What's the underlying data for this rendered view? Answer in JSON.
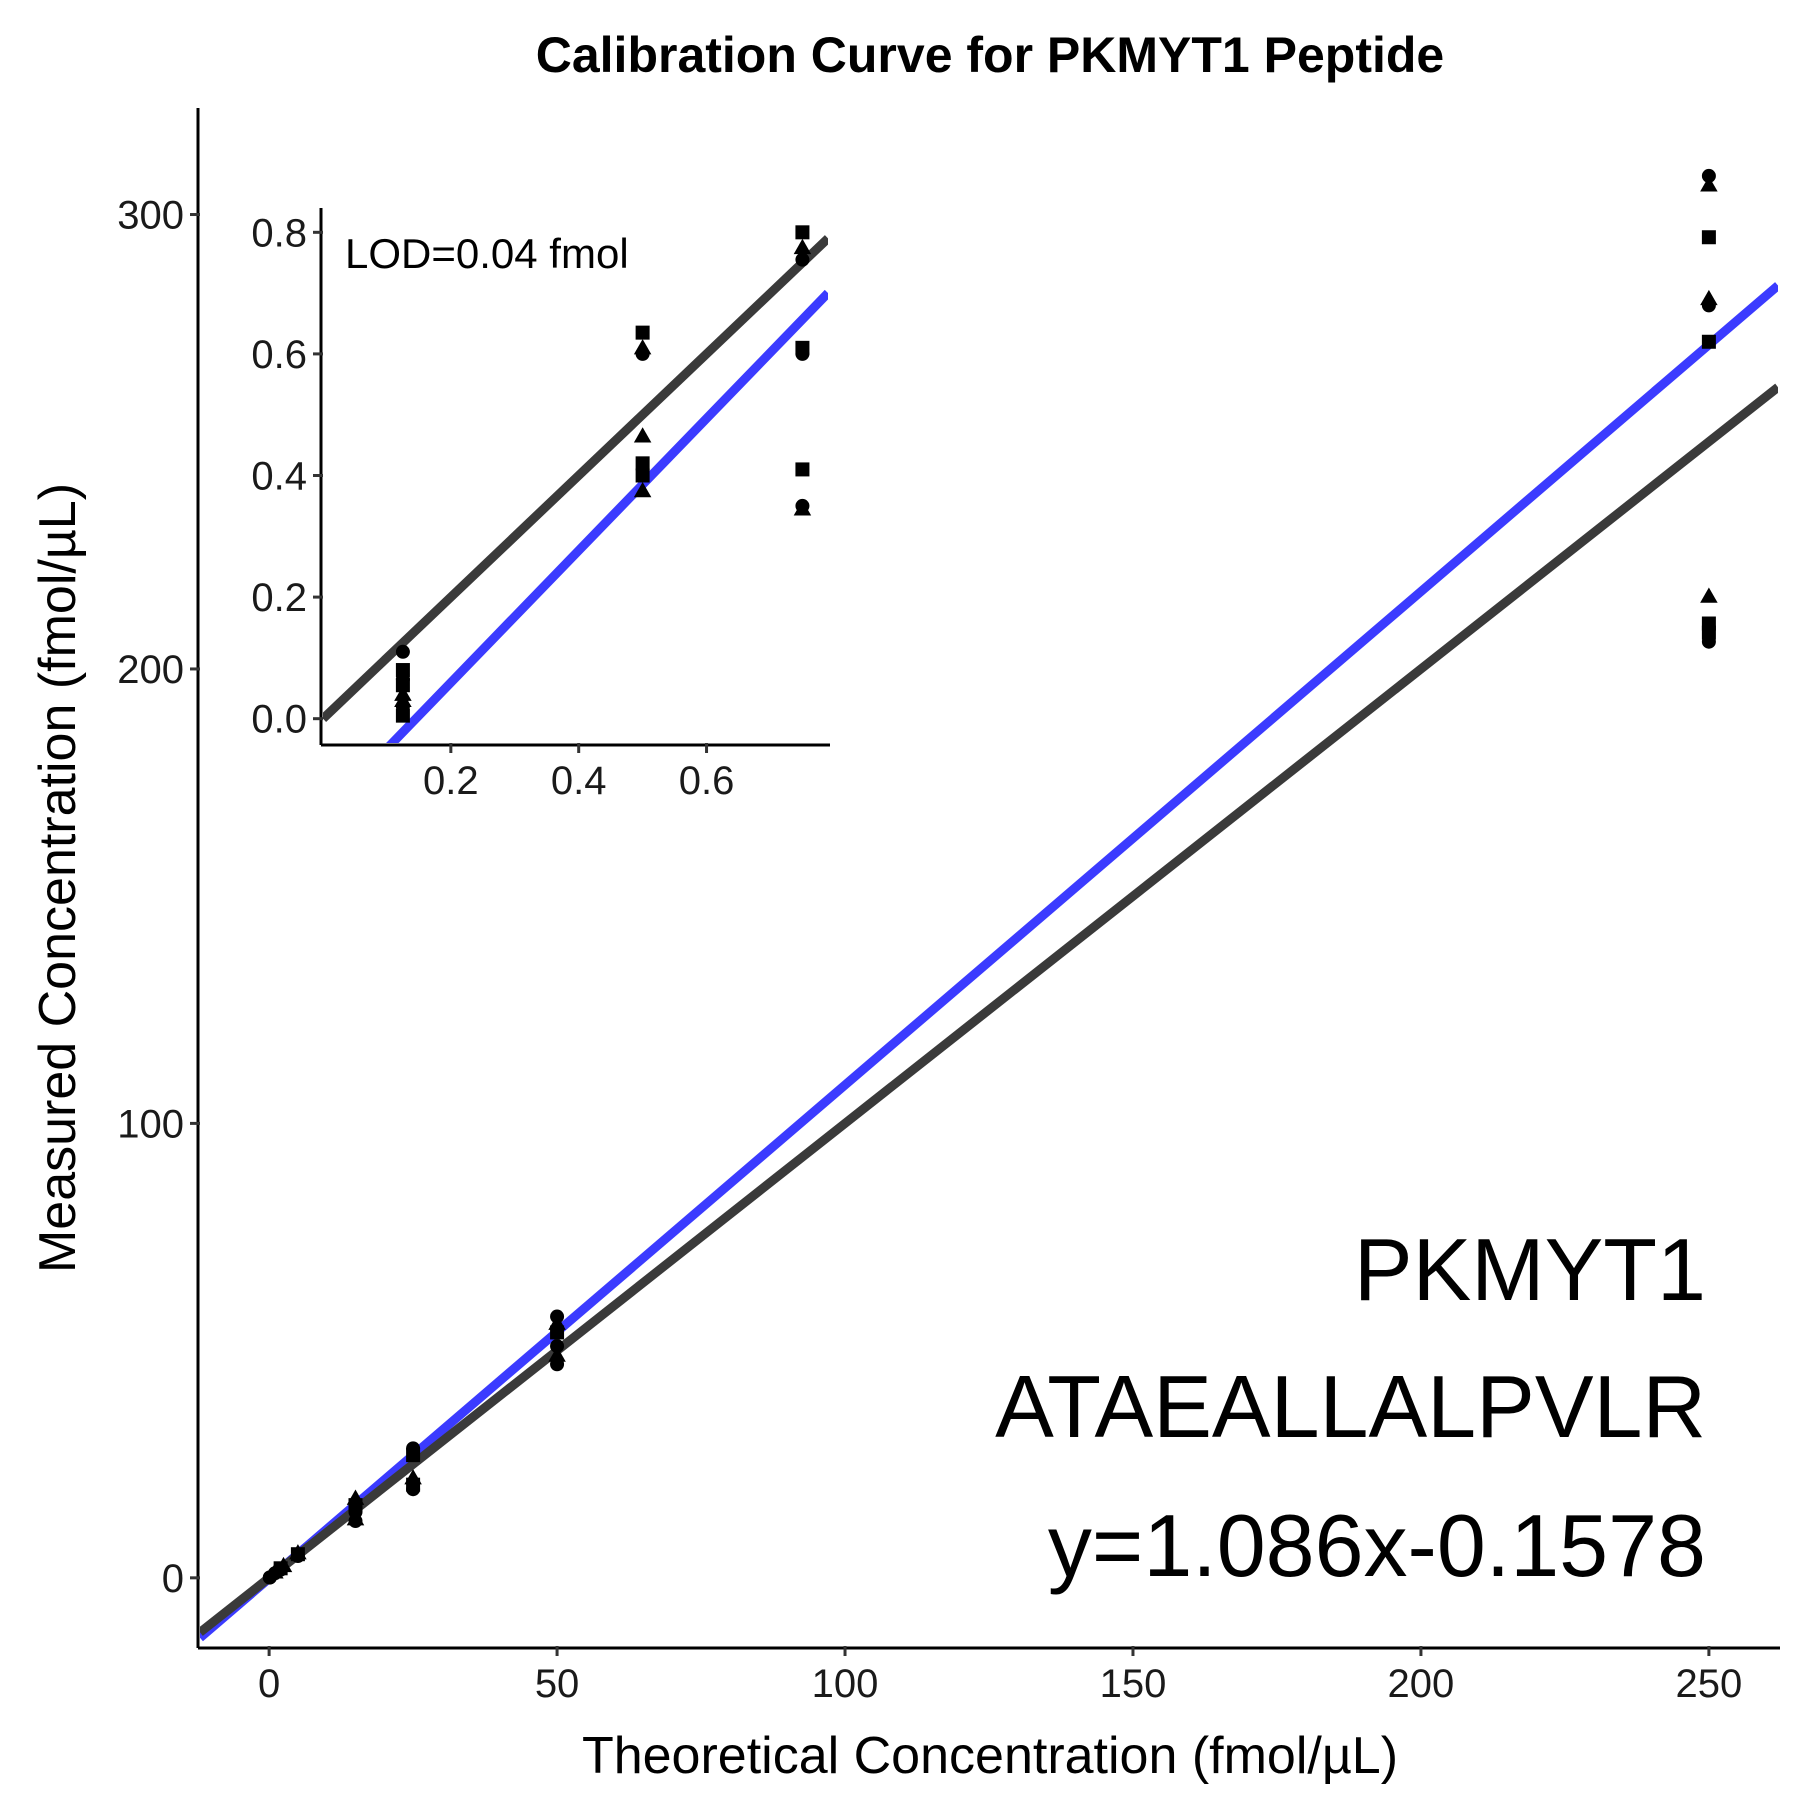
{
  "chart_data": {
    "type": "scatter",
    "title": "Calibration Curve for PKMYT1 Peptide",
    "xlabel": "Theoretical Concentration (fmol/µL)",
    "ylabel": "Measured Concentration (fmol/µL)",
    "xlim": [
      -12,
      262
    ],
    "ylim": [
      -15,
      323
    ],
    "xticks": [
      0,
      50,
      100,
      150,
      200,
      250
    ],
    "yticks": [
      0,
      100,
      200,
      300
    ],
    "grid": false,
    "annotation": {
      "protein": "PKMYT1",
      "peptide": "ATAEALLALPVLR",
      "equation": "y=1.086x-0.1578"
    },
    "lines": [
      {
        "name": "",
        "color": "#3b3bff",
        "slope": 1.086,
        "intercept": -0.1578
      },
      {
        "name": "",
        "color": "#3a3a3a",
        "slope": 1.0,
        "intercept": 0.0
      }
    ],
    "points": [
      {
        "x": 0.125,
        "y": 0.05,
        "shape": "circle"
      },
      {
        "x": 0.125,
        "y": 0.1,
        "shape": "circle"
      },
      {
        "x": 1,
        "y": 1.0,
        "shape": "circle"
      },
      {
        "x": 1,
        "y": 1.3,
        "shape": "triangle"
      },
      {
        "x": 2,
        "y": 2.1,
        "shape": "square"
      },
      {
        "x": 2,
        "y": 1.8,
        "shape": "circle"
      },
      {
        "x": 2.5,
        "y": 2.7,
        "shape": "triangle"
      },
      {
        "x": 5,
        "y": 5.2,
        "shape": "square"
      },
      {
        "x": 5,
        "y": 4.8,
        "shape": "circle"
      },
      {
        "x": 5,
        "y": 5.5,
        "shape": "triangle"
      },
      {
        "x": 15,
        "y": 17.5,
        "shape": "triangle"
      },
      {
        "x": 15,
        "y": 16.0,
        "shape": "square"
      },
      {
        "x": 15,
        "y": 14.5,
        "shape": "circle"
      },
      {
        "x": 15,
        "y": 13.0,
        "shape": "triangle"
      },
      {
        "x": 15,
        "y": 12.5,
        "shape": "circle"
      },
      {
        "x": 25,
        "y": 28.5,
        "shape": "circle"
      },
      {
        "x": 25,
        "y": 27.0,
        "shape": "square"
      },
      {
        "x": 25,
        "y": 22.0,
        "shape": "triangle"
      },
      {
        "x": 25,
        "y": 20.5,
        "shape": "square"
      },
      {
        "x": 25,
        "y": 19.5,
        "shape": "circle"
      },
      {
        "x": 50,
        "y": 57.5,
        "shape": "circle"
      },
      {
        "x": 50,
        "y": 56.0,
        "shape": "triangle"
      },
      {
        "x": 50,
        "y": 54.0,
        "shape": "square"
      },
      {
        "x": 50,
        "y": 51.0,
        "shape": "circle"
      },
      {
        "x": 50,
        "y": 49.0,
        "shape": "triangle"
      },
      {
        "x": 50,
        "y": 47.0,
        "shape": "circle"
      },
      {
        "x": 250,
        "y": 308.5,
        "shape": "circle"
      },
      {
        "x": 250,
        "y": 306.5,
        "shape": "triangle"
      },
      {
        "x": 250,
        "y": 295.0,
        "shape": "square"
      },
      {
        "x": 250,
        "y": 281.5,
        "shape": "triangle"
      },
      {
        "x": 250,
        "y": 280.0,
        "shape": "circle"
      },
      {
        "x": 250,
        "y": 272.0,
        "shape": "square"
      },
      {
        "x": 250,
        "y": 216.0,
        "shape": "triangle"
      },
      {
        "x": 250,
        "y": 210.0,
        "shape": "square"
      },
      {
        "x": 250,
        "y": 208.0,
        "shape": "square"
      },
      {
        "x": 250,
        "y": 206.0,
        "shape": "circle"
      }
    ],
    "inset": {
      "type": "scatter",
      "label": "LOD=0.04 fmol",
      "xlim": [
        0,
        0.79
      ],
      "ylim": [
        -0.04,
        0.84
      ],
      "xticks": [
        0.2,
        0.4,
        0.6
      ],
      "yticks": [
        0.0,
        0.2,
        0.4,
        0.6,
        0.8
      ],
      "points": [
        {
          "x": 0.125,
          "y": 0.11,
          "shape": "circle"
        },
        {
          "x": 0.125,
          "y": 0.08,
          "shape": "square"
        },
        {
          "x": 0.125,
          "y": 0.065,
          "shape": "circle"
        },
        {
          "x": 0.125,
          "y": 0.055,
          "shape": "square"
        },
        {
          "x": 0.125,
          "y": 0.04,
          "shape": "triangle"
        },
        {
          "x": 0.125,
          "y": 0.03,
          "shape": "triangle"
        },
        {
          "x": 0.125,
          "y": 0.02,
          "shape": "circle"
        },
        {
          "x": 0.125,
          "y": 0.005,
          "shape": "square"
        },
        {
          "x": 0.5,
          "y": 0.635,
          "shape": "square"
        },
        {
          "x": 0.5,
          "y": 0.61,
          "shape": "triangle"
        },
        {
          "x": 0.5,
          "y": 0.6,
          "shape": "circle"
        },
        {
          "x": 0.5,
          "y": 0.465,
          "shape": "triangle"
        },
        {
          "x": 0.5,
          "y": 0.42,
          "shape": "square"
        },
        {
          "x": 0.5,
          "y": 0.4,
          "shape": "square"
        },
        {
          "x": 0.5,
          "y": 0.375,
          "shape": "triangle"
        },
        {
          "x": 0.75,
          "y": 0.8,
          "shape": "square"
        },
        {
          "x": 0.75,
          "y": 0.775,
          "shape": "triangle"
        },
        {
          "x": 0.75,
          "y": 0.755,
          "shape": "circle"
        },
        {
          "x": 0.75,
          "y": 0.61,
          "shape": "square"
        },
        {
          "x": 0.75,
          "y": 0.6,
          "shape": "circle"
        },
        {
          "x": 0.75,
          "y": 0.41,
          "shape": "square"
        },
        {
          "x": 0.75,
          "y": 0.345,
          "shape": "triangle"
        },
        {
          "x": 0.75,
          "y": 0.35,
          "shape": "circle"
        }
      ]
    }
  }
}
